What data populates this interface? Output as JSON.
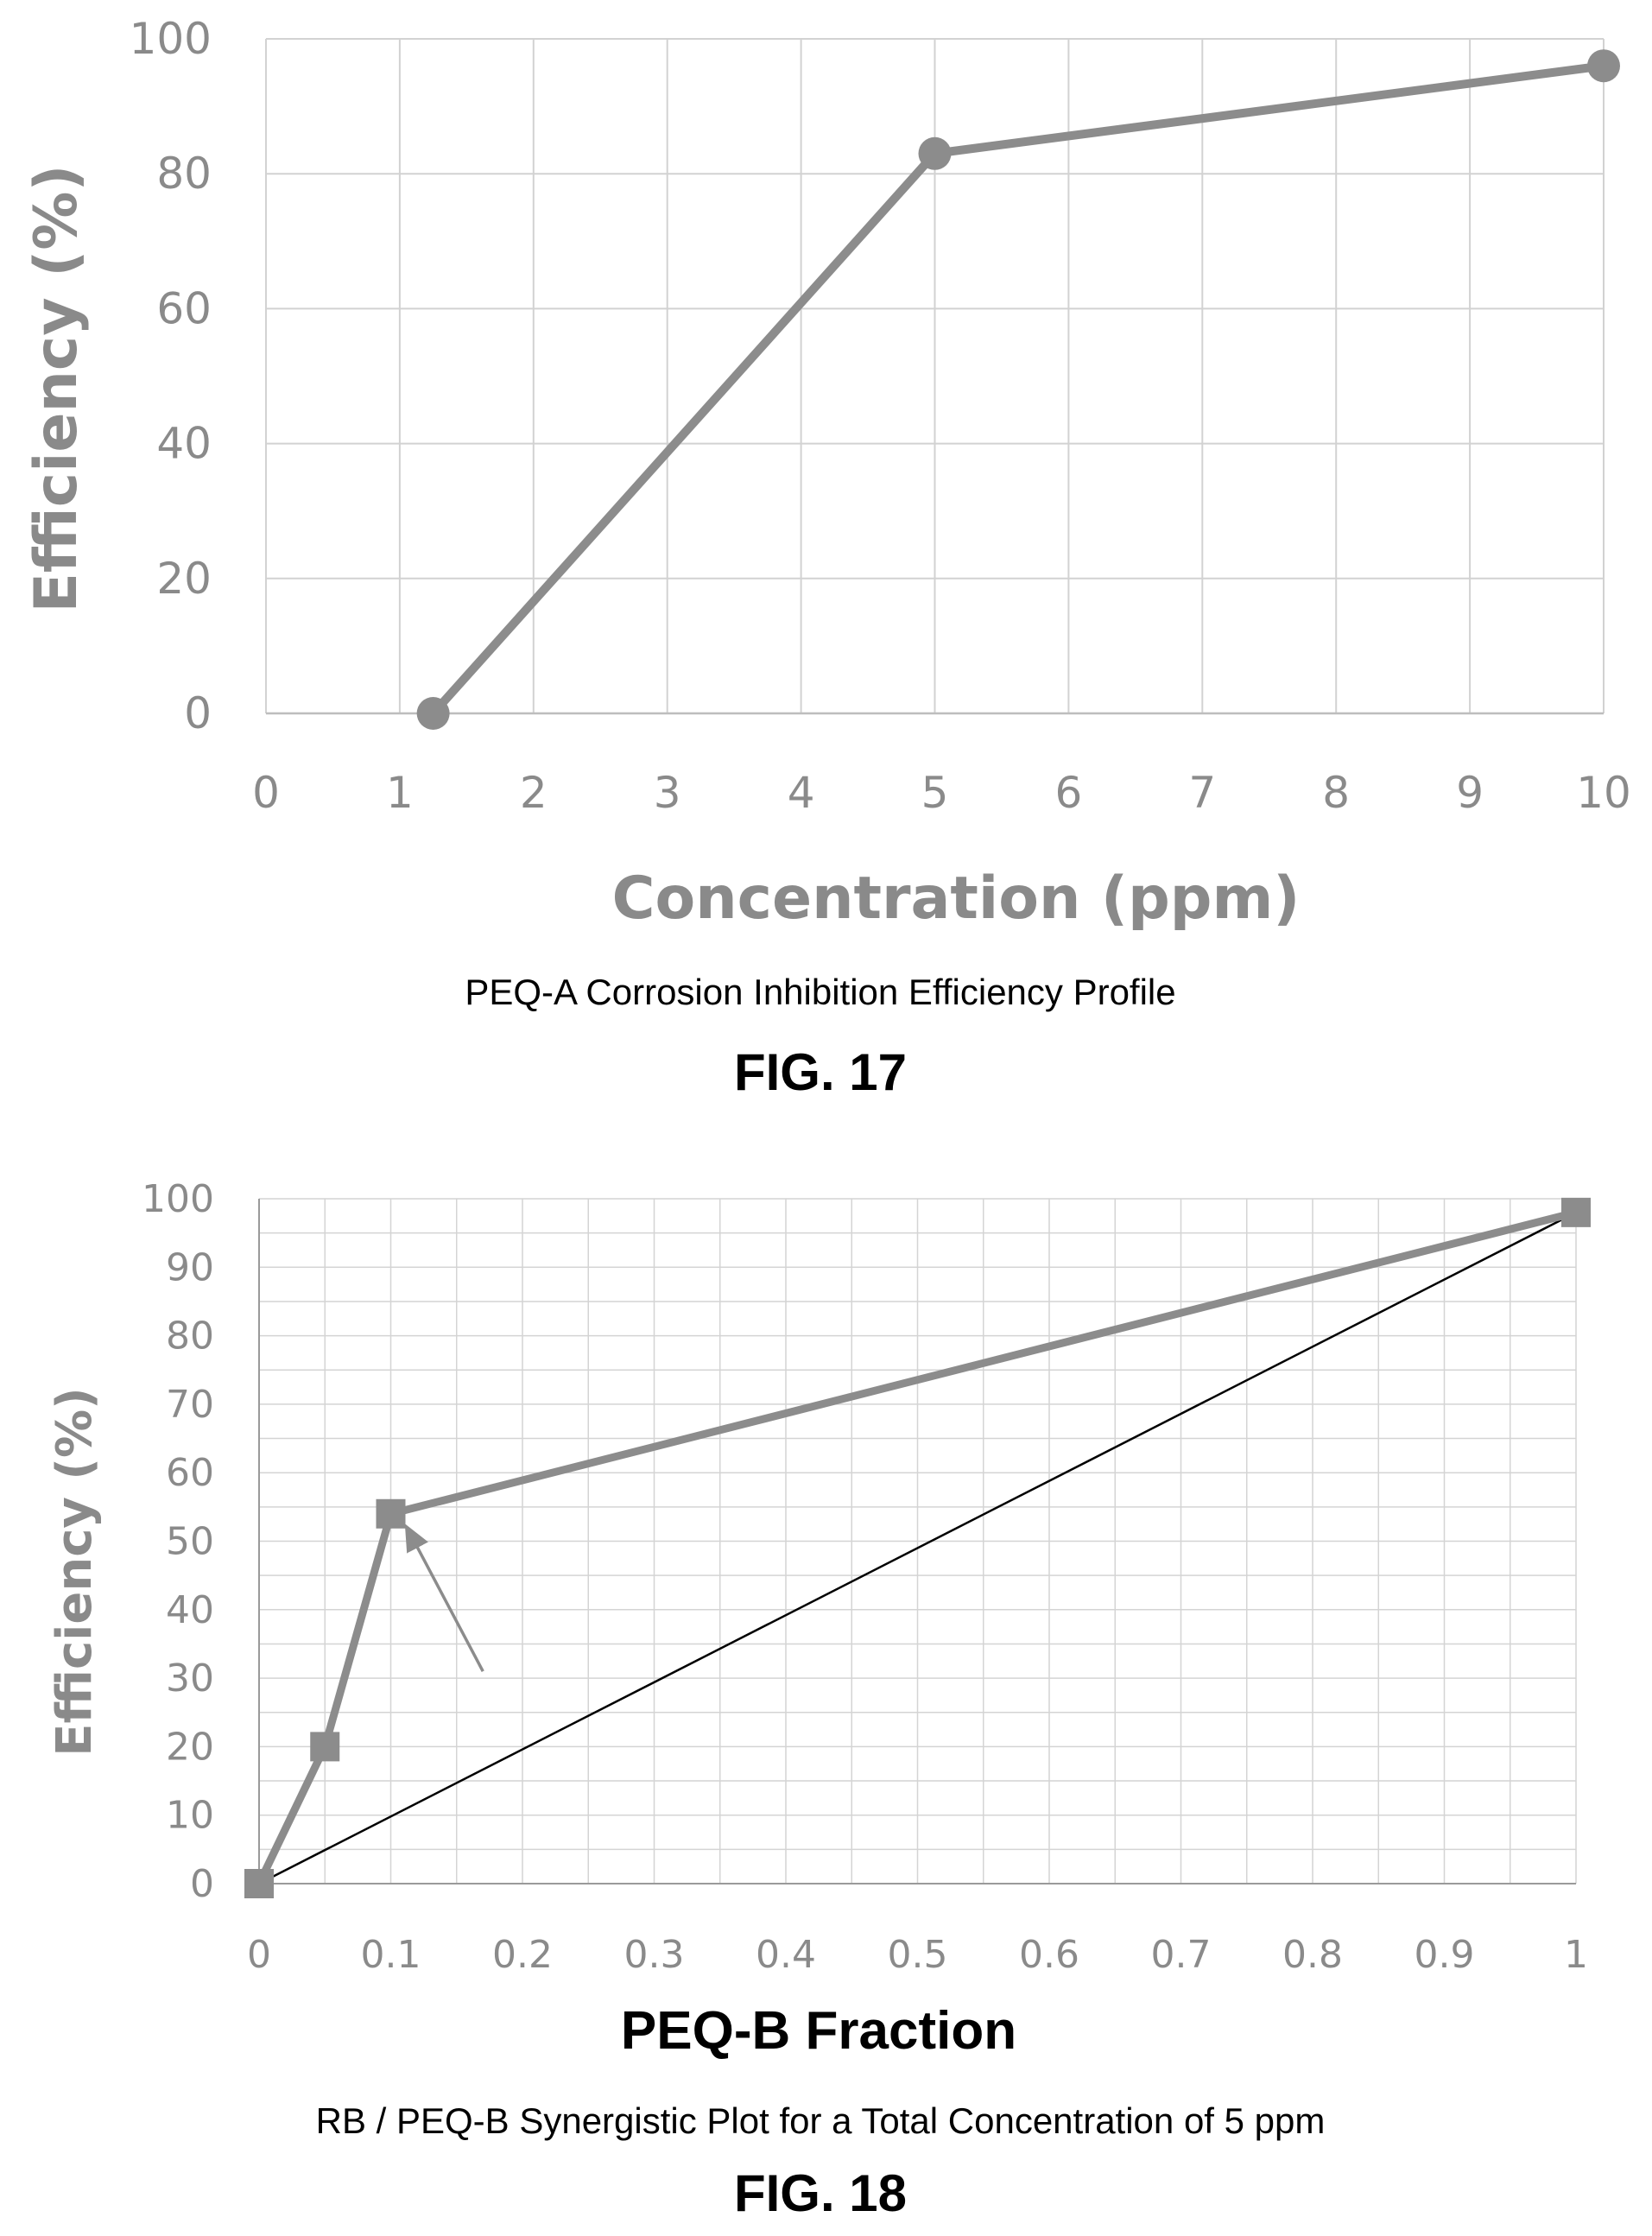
{
  "chart_data": [
    {
      "type": "line",
      "title": "",
      "xlabel": "Concentration (ppm)",
      "ylabel": "Efficiency (%)",
      "categories": [
        "0",
        "1",
        "2",
        "3",
        "4",
        "5",
        "6",
        "7",
        "8",
        "9",
        "10"
      ],
      "y_ticks": [
        "0",
        "20",
        "40",
        "60",
        "80",
        "100"
      ],
      "ylim": [
        0,
        100
      ],
      "grid": true,
      "series": [
        {
          "x": [
            1.25,
            5,
            10
          ],
          "values": [
            0,
            83,
            96
          ],
          "marker": "circle",
          "color": "#8c8c8c"
        }
      ],
      "caption": "PEQ-A Corrosion Inhibition Efficiency Profile",
      "figure_label": "FIG. 17"
    },
    {
      "type": "line",
      "title": "",
      "xlabel": "PEQ-B Fraction",
      "ylabel": "Efficiency (%)",
      "x_ticks": [
        "0",
        "0.1",
        "0.2",
        "0.3",
        "0.4",
        "0.5",
        "0.6",
        "0.7",
        "0.8",
        "0.9",
        "1"
      ],
      "y_ticks": [
        "0",
        "10",
        "20",
        "30",
        "40",
        "50",
        "60",
        "70",
        "80",
        "90",
        "100"
      ],
      "xlim": [
        0,
        1
      ],
      "ylim": [
        0,
        100
      ],
      "grid": true,
      "series": [
        {
          "x": [
            0,
            0.05,
            0.1,
            1
          ],
          "values": [
            0,
            20,
            54,
            98
          ],
          "marker": "square",
          "color": "#8c8c8c"
        },
        {
          "x": [
            0,
            1
          ],
          "values": [
            0,
            98
          ],
          "marker": "none",
          "color": "#000000"
        }
      ],
      "annotations": [
        {
          "type": "arrow",
          "from": [
            0.17,
            31
          ],
          "to": [
            0.115,
            51
          ],
          "color": "#8c8c8c"
        }
      ],
      "caption": "RB / PEQ-B Synergistic Plot for a Total Concentration of 5 ppm",
      "figure_label": "FIG. 18"
    }
  ]
}
